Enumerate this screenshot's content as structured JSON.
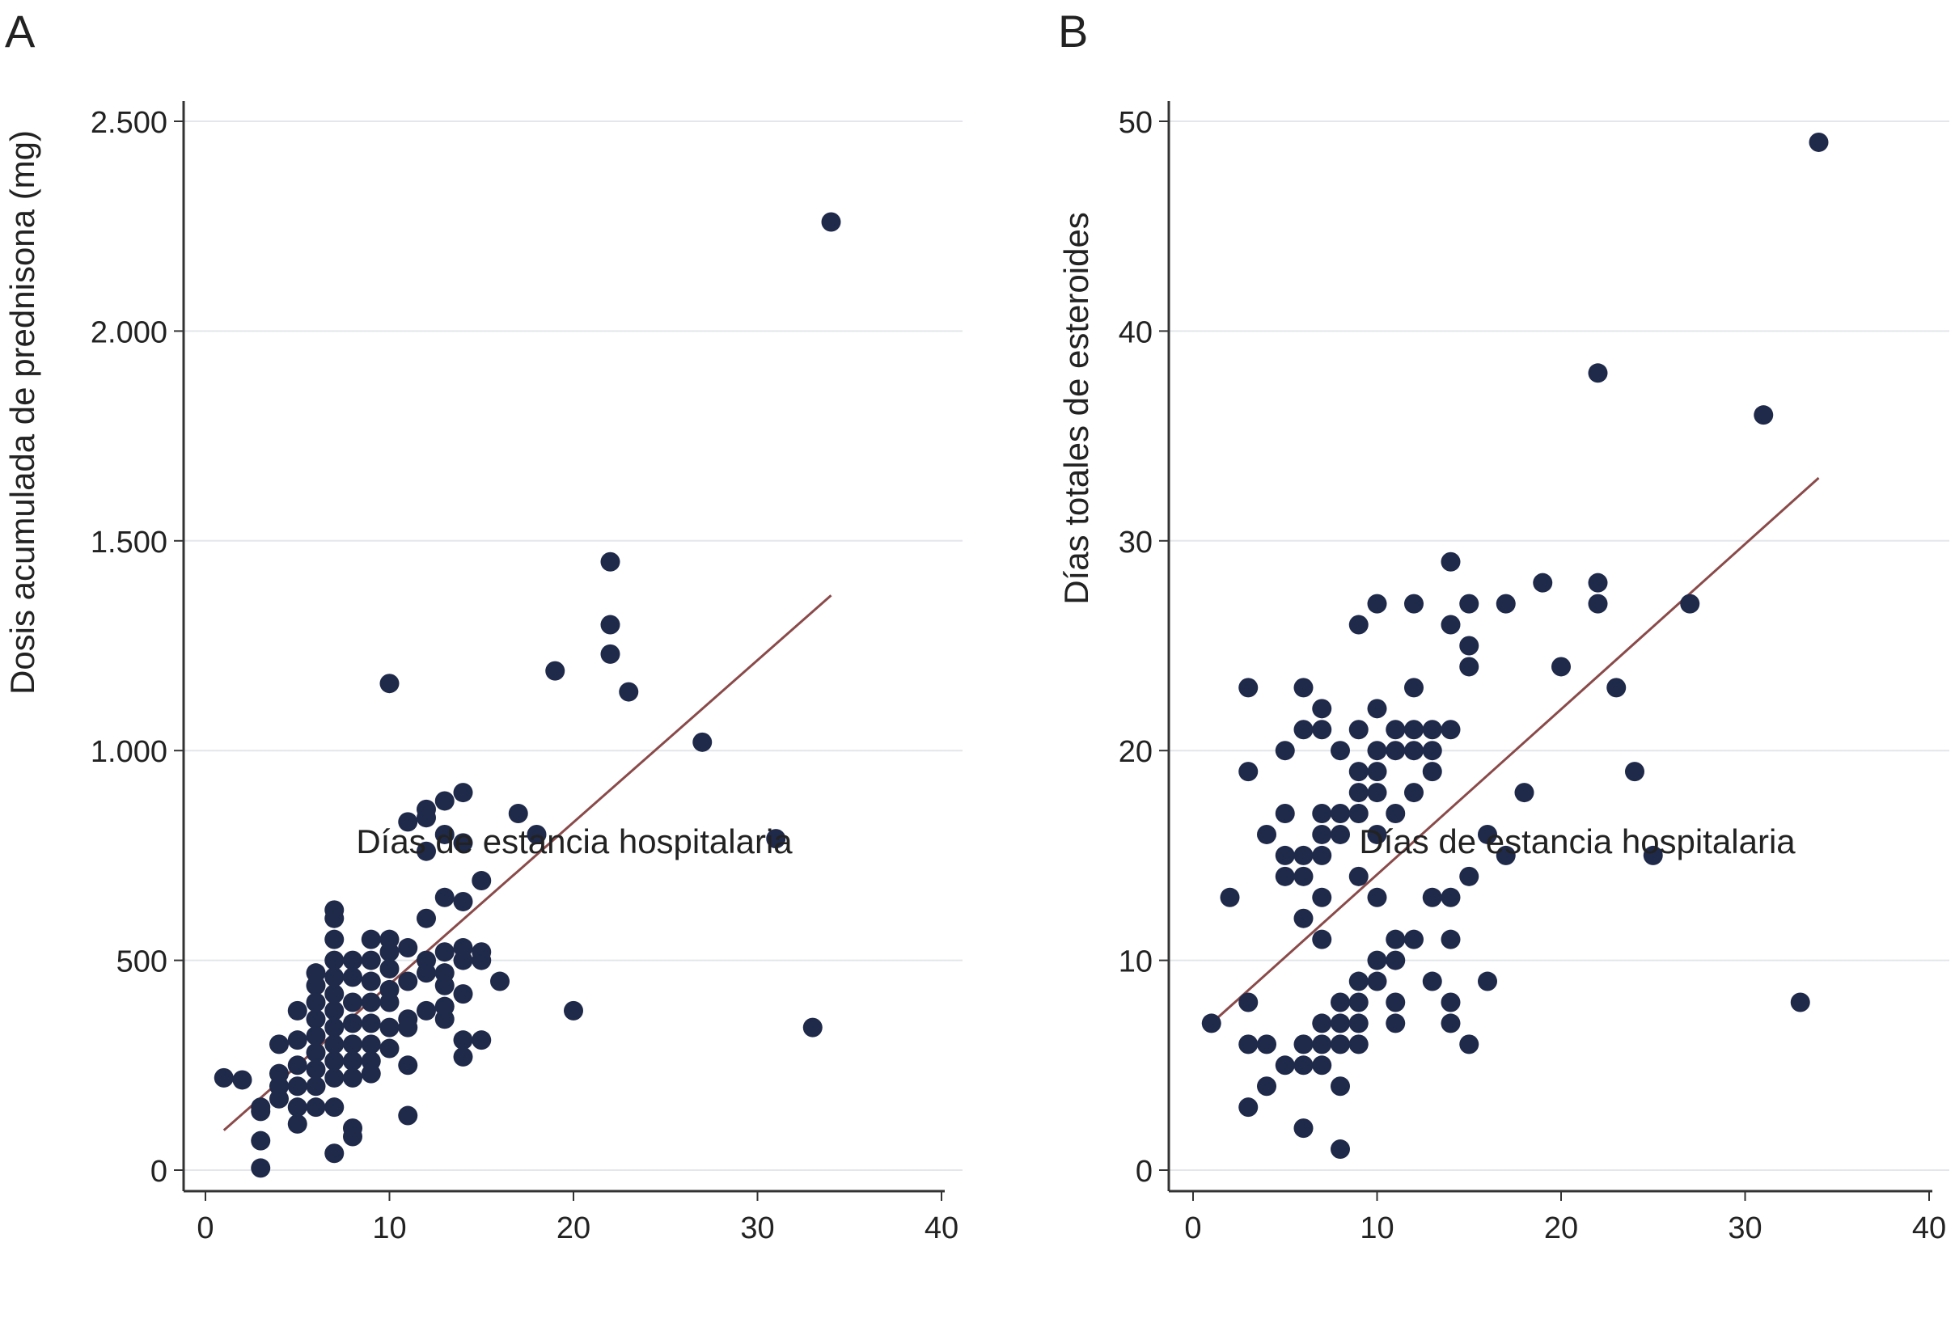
{
  "colors": {
    "point": "#1f2a4a",
    "fit_line": "#8b4a4a",
    "grid": "#e3e6ea",
    "axis": "#333333"
  },
  "chart_data": [
    {
      "panel_label": "A",
      "type": "scatter",
      "xlabel": "Días de estancia hospitalaria",
      "ylabel": "Dosis acumulada de prednisona (mg)",
      "xlim": [
        0,
        40
      ],
      "ylim": [
        0,
        2500
      ],
      "xticks": [
        0,
        10,
        20,
        30,
        40
      ],
      "xtick_labels": [
        "0",
        "10",
        "20",
        "30",
        "40"
      ],
      "yticks": [
        0,
        500,
        1000,
        1500,
        2000,
        2500
      ],
      "ytick_labels": [
        "0",
        "500",
        "1.000",
        "1.500",
        "2.000",
        "2.500"
      ],
      "grid": "horizontal",
      "fit_line": {
        "x": [
          1,
          34
        ],
        "y": [
          95,
          1370
        ]
      },
      "points": [
        [
          1,
          220
        ],
        [
          2,
          215
        ],
        [
          3,
          150
        ],
        [
          3,
          140
        ],
        [
          3,
          70
        ],
        [
          3,
          5
        ],
        [
          4,
          300
        ],
        [
          4,
          230
        ],
        [
          4,
          200
        ],
        [
          4,
          170
        ],
        [
          5,
          380
        ],
        [
          5,
          310
        ],
        [
          5,
          250
        ],
        [
          5,
          200
        ],
        [
          5,
          150
        ],
        [
          5,
          110
        ],
        [
          6,
          470
        ],
        [
          6,
          440
        ],
        [
          6,
          400
        ],
        [
          6,
          360
        ],
        [
          6,
          320
        ],
        [
          6,
          280
        ],
        [
          6,
          240
        ],
        [
          6,
          200
        ],
        [
          6,
          150
        ],
        [
          7,
          620
        ],
        [
          7,
          600
        ],
        [
          7,
          550
        ],
        [
          7,
          500
        ],
        [
          7,
          460
        ],
        [
          7,
          420
        ],
        [
          7,
          380
        ],
        [
          7,
          340
        ],
        [
          7,
          300
        ],
        [
          7,
          260
        ],
        [
          7,
          220
        ],
        [
          7,
          150
        ],
        [
          7,
          40
        ],
        [
          8,
          500
        ],
        [
          8,
          460
        ],
        [
          8,
          400
        ],
        [
          8,
          350
        ],
        [
          8,
          300
        ],
        [
          8,
          260
        ],
        [
          8,
          220
        ],
        [
          8,
          100
        ],
        [
          8,
          80
        ],
        [
          9,
          550
        ],
        [
          9,
          500
        ],
        [
          9,
          450
        ],
        [
          9,
          400
        ],
        [
          9,
          350
        ],
        [
          9,
          300
        ],
        [
          9,
          260
        ],
        [
          9,
          230
        ],
        [
          10,
          1160
        ],
        [
          10,
          550
        ],
        [
          10,
          520
        ],
        [
          10,
          480
        ],
        [
          10,
          430
        ],
        [
          10,
          400
        ],
        [
          10,
          340
        ],
        [
          10,
          290
        ],
        [
          11,
          830
        ],
        [
          11,
          530
        ],
        [
          11,
          450
        ],
        [
          11,
          360
        ],
        [
          11,
          340
        ],
        [
          11,
          250
        ],
        [
          11,
          130
        ],
        [
          12,
          860
        ],
        [
          12,
          840
        ],
        [
          12,
          760
        ],
        [
          12,
          600
        ],
        [
          12,
          500
        ],
        [
          12,
          470
        ],
        [
          12,
          380
        ],
        [
          13,
          880
        ],
        [
          13,
          800
        ],
        [
          13,
          650
        ],
        [
          13,
          520
        ],
        [
          13,
          470
        ],
        [
          13,
          440
        ],
        [
          13,
          390
        ],
        [
          13,
          360
        ],
        [
          14,
          900
        ],
        [
          14,
          780
        ],
        [
          14,
          640
        ],
        [
          14,
          530
        ],
        [
          14,
          500
        ],
        [
          14,
          420
        ],
        [
          14,
          310
        ],
        [
          14,
          270
        ],
        [
          15,
          690
        ],
        [
          15,
          520
        ],
        [
          15,
          500
        ],
        [
          15,
          310
        ],
        [
          16,
          450
        ],
        [
          17,
          850
        ],
        [
          18,
          800
        ],
        [
          19,
          1190
        ],
        [
          20,
          380
        ],
        [
          22,
          1450
        ],
        [
          22,
          1300
        ],
        [
          22,
          1230
        ],
        [
          23,
          1140
        ],
        [
          27,
          1020
        ],
        [
          31,
          790
        ],
        [
          33,
          340
        ],
        [
          34,
          2260
        ]
      ]
    },
    {
      "panel_label": "B",
      "type": "scatter",
      "xlabel": "Días de estancia hospitalaria",
      "ylabel": "Días totales de esteroides",
      "xlim": [
        0,
        40
      ],
      "ylim": [
        0,
        50
      ],
      "xticks": [
        0,
        10,
        20,
        30,
        40
      ],
      "xtick_labels": [
        "0",
        "10",
        "20",
        "30",
        "40"
      ],
      "yticks": [
        0,
        10,
        20,
        30,
        40,
        50
      ],
      "ytick_labels": [
        "0",
        "10",
        "20",
        "30",
        "40",
        "50"
      ],
      "grid": "horizontal",
      "fit_line": {
        "x": [
          1,
          34
        ],
        "y": [
          7,
          33
        ]
      },
      "points": [
        [
          1,
          7
        ],
        [
          2,
          13
        ],
        [
          3,
          23
        ],
        [
          3,
          19
        ],
        [
          3,
          8
        ],
        [
          3,
          6
        ],
        [
          3,
          3
        ],
        [
          4,
          16
        ],
        [
          4,
          6
        ],
        [
          4,
          4
        ],
        [
          5,
          20
        ],
        [
          5,
          17
        ],
        [
          5,
          15
        ],
        [
          5,
          14
        ],
        [
          5,
          5
        ],
        [
          6,
          23
        ],
        [
          6,
          21
        ],
        [
          6,
          15
        ],
        [
          6,
          14
        ],
        [
          6,
          12
        ],
        [
          6,
          6
        ],
        [
          6,
          5
        ],
        [
          6,
          2
        ],
        [
          7,
          22
        ],
        [
          7,
          21
        ],
        [
          7,
          17
        ],
        [
          7,
          16
        ],
        [
          7,
          15
        ],
        [
          7,
          13
        ],
        [
          7,
          11
        ],
        [
          7,
          7
        ],
        [
          7,
          6
        ],
        [
          7,
          5
        ],
        [
          8,
          20
        ],
        [
          8,
          17
        ],
        [
          8,
          16
        ],
        [
          8,
          8
        ],
        [
          8,
          7
        ],
        [
          8,
          6
        ],
        [
          8,
          4
        ],
        [
          8,
          1
        ],
        [
          9,
          26
        ],
        [
          9,
          21
        ],
        [
          9,
          19
        ],
        [
          9,
          18
        ],
        [
          9,
          17
        ],
        [
          9,
          14
        ],
        [
          9,
          9
        ],
        [
          9,
          8
        ],
        [
          9,
          7
        ],
        [
          9,
          6
        ],
        [
          10,
          27
        ],
        [
          10,
          22
        ],
        [
          10,
          20
        ],
        [
          10,
          19
        ],
        [
          10,
          18
        ],
        [
          10,
          16
        ],
        [
          10,
          13
        ],
        [
          10,
          10
        ],
        [
          10,
          9
        ],
        [
          11,
          21
        ],
        [
          11,
          20
        ],
        [
          11,
          17
        ],
        [
          11,
          11
        ],
        [
          11,
          10
        ],
        [
          11,
          8
        ],
        [
          11,
          7
        ],
        [
          12,
          27
        ],
        [
          12,
          23
        ],
        [
          12,
          21
        ],
        [
          12,
          20
        ],
        [
          12,
          18
        ],
        [
          12,
          11
        ],
        [
          13,
          21
        ],
        [
          13,
          20
        ],
        [
          13,
          19
        ],
        [
          13,
          13
        ],
        [
          13,
          9
        ],
        [
          14,
          29
        ],
        [
          14,
          26
        ],
        [
          14,
          21
        ],
        [
          14,
          13
        ],
        [
          14,
          11
        ],
        [
          14,
          8
        ],
        [
          14,
          7
        ],
        [
          15,
          27
        ],
        [
          15,
          25
        ],
        [
          15,
          24
        ],
        [
          15,
          14
        ],
        [
          15,
          6
        ],
        [
          16,
          16
        ],
        [
          16,
          9
        ],
        [
          17,
          27
        ],
        [
          17,
          15
        ],
        [
          18,
          18
        ],
        [
          19,
          28
        ],
        [
          20,
          24
        ],
        [
          22,
          38
        ],
        [
          22,
          28
        ],
        [
          22,
          27
        ],
        [
          23,
          23
        ],
        [
          24,
          19
        ],
        [
          25,
          15
        ],
        [
          27,
          27
        ],
        [
          31,
          36
        ],
        [
          33,
          8
        ],
        [
          34,
          49
        ]
      ]
    }
  ]
}
